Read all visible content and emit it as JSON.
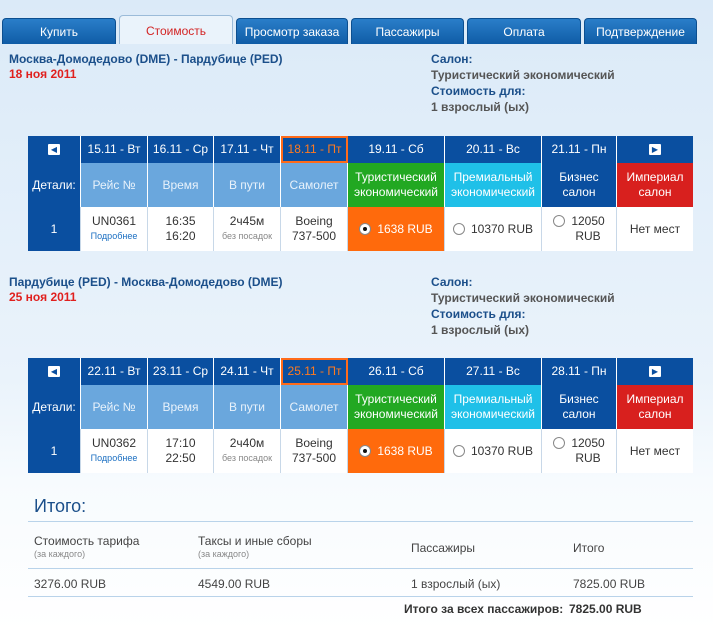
{
  "tabs": [
    "Купить",
    "Стоимость",
    "Просмотр заказа",
    "Пассажиры",
    "Оплата",
    "Подтверждение"
  ],
  "active_tab": 1,
  "salon_label": "Салон:",
  "salon_value": "Туристический экономический",
  "cost_label": "Стоимость для:",
  "cost_value": "1 взрослый (ых)",
  "headers": {
    "details": "Детали:",
    "flight": "Рейс №",
    "time": "Время",
    "duration": "В пути",
    "plane": "Самолет",
    "tourist": "Туристический экономический",
    "premium": "Премиальный экономический",
    "business": "Бизнес салон",
    "imperial": "Империал салон"
  },
  "segments": [
    {
      "title": "Москва-Домодедово (DME) - Пардубице (PED)",
      "date": "18 ноя 2011",
      "dates": [
        "15.11 - Вт",
        "16.11 - Ср",
        "17.11 - Чт",
        "18.11 - Пт",
        "19.11 - Сб",
        "20.11 - Вс",
        "21.11 - Пн"
      ],
      "flight": {
        "details": "1",
        "number": "UN0361",
        "more": "Подробнее",
        "dep": "16:35",
        "arr": "16:20",
        "duration": "2ч45м",
        "stops": "без посадок",
        "plane_l1": "Boeing",
        "plane_l2": "737-500",
        "tourist_price": "1638 RUB",
        "premium_price": "10370 RUB",
        "business_price_l1": "12050",
        "business_price_l2": "RUB",
        "imperial": "Нет мест"
      }
    },
    {
      "title": "Пардубице (PED) - Москва-Домодедово (DME)",
      "date": "25 ноя 2011",
      "dates": [
        "22.11 - Вт",
        "23.11 - Ср",
        "24.11 - Чт",
        "25.11 - Пт",
        "26.11 - Сб",
        "27.11 - Вс",
        "28.11 - Пн"
      ],
      "flight": {
        "details": "1",
        "number": "UN0362",
        "more": "Подробнее",
        "dep": "17:10",
        "arr": "22:50",
        "duration": "2ч40м",
        "stops": "без посадок",
        "plane_l1": "Boeing",
        "plane_l2": "737-500",
        "tourist_price": "1638 RUB",
        "premium_price": "10370 RUB",
        "business_price_l1": "12050",
        "business_price_l2": "RUB",
        "imperial": "Нет мест"
      }
    }
  ],
  "summary": {
    "title": "Итого:",
    "fare_label": "Стоимость тарифа",
    "fare_sub": "(за каждого)",
    "taxes_label": "Таксы и иные сборы",
    "taxes_sub": "(за каждого)",
    "passengers_label": "Пассажиры",
    "total_label": "Итого",
    "fare_value": "3276.00 RUB",
    "taxes_value": "4549.00 RUB",
    "passengers_value": "1 взрослый (ых)",
    "total_value": "7825.00 RUB",
    "grand_label": "Итого за всех пассажиров:",
    "grand_value": "7825.00 RUB"
  },
  "colors": {
    "tab_blue": "#0f5ca6",
    "tourist": "#22a822",
    "premium": "#1fc0e8",
    "business": "#0a4fa0",
    "imperial": "#d8201e",
    "selected_fare": "#ff6a0c"
  }
}
